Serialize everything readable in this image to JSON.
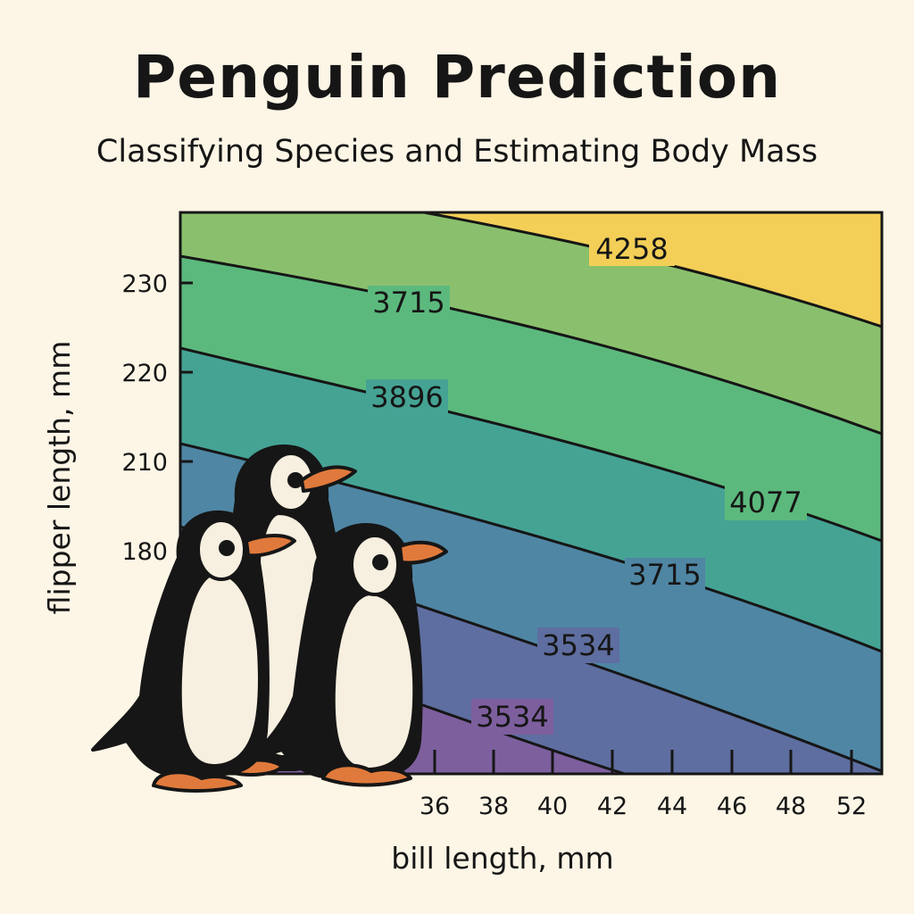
{
  "title": "Penguin Prediction",
  "subtitle": "Classifying Species and Estimating Body Mass",
  "colors": {
    "background": "#fdf6e6",
    "bands": [
      "#7d5f9e",
      "#5e6ea0",
      "#4f86a4",
      "#45a394",
      "#5cb97d",
      "#8ac06d",
      "#f3cf57"
    ],
    "line": "#161616",
    "penguin_body": "#161616",
    "penguin_belly": "#f7efdf",
    "penguin_beak": "#e07a3c"
  },
  "chart_data": {
    "type": "contour",
    "xlabel": "bill length, mm",
    "ylabel": "flipper length, mm",
    "x_ticks": [
      "36",
      "38",
      "40",
      "42",
      "44",
      "46",
      "48",
      "52"
    ],
    "y_ticks": [
      "230",
      "220",
      "210",
      "180"
    ],
    "grid": false,
    "contour_labels": [
      "4258",
      "3715",
      "3896",
      "4077",
      "3715",
      "3534",
      "3534"
    ],
    "illustration": "three-penguins-bottom-left"
  }
}
